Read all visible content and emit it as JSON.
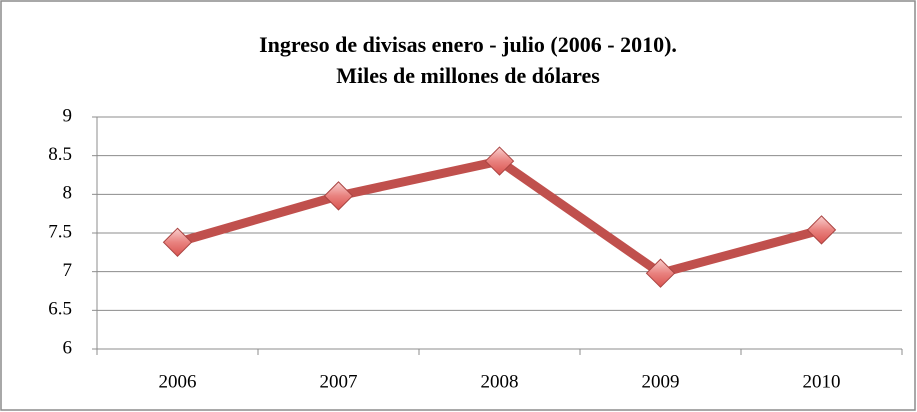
{
  "chart_data": {
    "type": "line",
    "title": "Ingreso de divisas enero - julio (2006 - 2010).",
    "subtitle": "Miles de millones de dólares",
    "categories": [
      "2006",
      "2007",
      "2008",
      "2009",
      "2010"
    ],
    "values": [
      7.38,
      7.98,
      8.43,
      6.98,
      7.54
    ],
    "color": "#c0504d",
    "ylim": [
      6,
      9
    ],
    "yticks": [
      6,
      6.5,
      7,
      7.5,
      8,
      8.5,
      9
    ],
    "grid": true
  }
}
